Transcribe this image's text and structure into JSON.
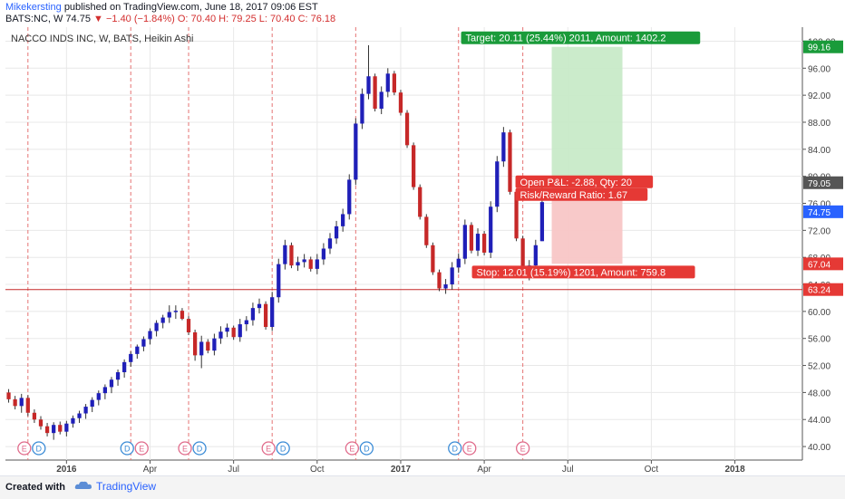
{
  "header": {
    "author": "Mikekersting",
    "published": "published on TradingView.com, June 18, 2017 09:06 EST",
    "symbol": "BATS:NC, W",
    "last": "74.75",
    "change_arrow": "▼",
    "change": "−1.40 (−1.84%)",
    "ohlc": "O: 70.40  H: 79.25  L: 70.40  C: 76.18"
  },
  "footer": {
    "created": "Created with",
    "brand": "TradingView"
  },
  "chart_data": {
    "type": "candlestick",
    "title": "NACCO INDS INC, W, BATS, Heikin Ashi",
    "ylim": [
      38.0,
      101.0
    ],
    "y_ticks": [
      "40.00",
      "44.00",
      "48.00",
      "52.00",
      "56.00",
      "60.00",
      "64.00",
      "68.00",
      "72.00",
      "76.00",
      "80.00",
      "84.00",
      "88.00",
      "92.00",
      "96.00",
      "100.00"
    ],
    "x_labels": [
      {
        "label": "2016",
        "week": 9
      },
      {
        "label": "Apr",
        "week": 22
      },
      {
        "label": "Jul",
        "week": 35
      },
      {
        "label": "Oct",
        "week": 48
      },
      {
        "label": "2017",
        "week": 61
      },
      {
        "label": "Apr",
        "week": 74
      },
      {
        "label": "Jul",
        "week": 87
      },
      {
        "label": "Oct",
        "week": 100
      },
      {
        "label": "2018",
        "week": 113
      }
    ],
    "weeks_total": 124,
    "colors": {
      "up": "#1f1fb8",
      "down": "#c62828",
      "grid": "#e8e8e8",
      "axis": "#555555"
    },
    "candles": [
      [
        48.0,
        48.5,
        46.5,
        47.0
      ],
      [
        47.0,
        47.5,
        45.5,
        46.0
      ],
      [
        46.0,
        47.8,
        45.0,
        47.2
      ],
      [
        47.2,
        47.6,
        44.5,
        45.0
      ],
      [
        45.0,
        45.5,
        43.5,
        44.0
      ],
      [
        44.0,
        44.5,
        42.5,
        43.0
      ],
      [
        43.0,
        43.5,
        41.5,
        42.0
      ],
      [
        42.0,
        43.6,
        41.0,
        43.2
      ],
      [
        43.2,
        43.7,
        41.8,
        42.2
      ],
      [
        42.2,
        43.8,
        41.5,
        43.4
      ],
      [
        43.4,
        44.6,
        42.8,
        44.2
      ],
      [
        44.2,
        45.3,
        43.5,
        44.9
      ],
      [
        44.9,
        46.3,
        44.1,
        45.9
      ],
      [
        45.9,
        47.3,
        45.1,
        46.9
      ],
      [
        46.9,
        48.3,
        46.1,
        47.9
      ],
      [
        47.9,
        49.2,
        47.0,
        48.8
      ],
      [
        48.8,
        50.3,
        47.9,
        49.9
      ],
      [
        49.9,
        51.4,
        49.0,
        51.0
      ],
      [
        51.0,
        52.9,
        50.2,
        52.5
      ],
      [
        52.5,
        54.1,
        51.8,
        53.7
      ],
      [
        53.7,
        55.1,
        53.0,
        54.8
      ],
      [
        54.8,
        56.3,
        54.1,
        55.9
      ],
      [
        55.9,
        57.5,
        55.1,
        57.1
      ],
      [
        57.1,
        58.7,
        56.3,
        58.3
      ],
      [
        58.3,
        59.5,
        57.5,
        59.1
      ],
      [
        59.1,
        60.9,
        58.3,
        59.9
      ],
      [
        59.9,
        60.9,
        58.9,
        60.1
      ],
      [
        60.1,
        60.5,
        58.7,
        58.9
      ],
      [
        58.9,
        59.3,
        56.5,
        56.9
      ],
      [
        56.9,
        57.3,
        52.7,
        53.5
      ],
      [
        53.5,
        56.4,
        51.6,
        55.5
      ],
      [
        55.5,
        55.9,
        53.8,
        54.2
      ],
      [
        54.2,
        56.7,
        53.5,
        56.0
      ],
      [
        56.0,
        57.8,
        55.2,
        57.0
      ],
      [
        57.0,
        58.2,
        56.2,
        57.6
      ],
      [
        57.6,
        57.9,
        55.8,
        56.2
      ],
      [
        56.2,
        58.9,
        55.5,
        58.1
      ],
      [
        58.1,
        59.3,
        57.1,
        58.7
      ],
      [
        58.7,
        61.3,
        57.9,
        60.5
      ],
      [
        60.5,
        61.9,
        59.7,
        61.1
      ],
      [
        61.1,
        61.5,
        57.3,
        57.7
      ],
      [
        57.7,
        62.9,
        57.1,
        62.1
      ],
      [
        62.1,
        67.8,
        61.3,
        67.0
      ],
      [
        67.0,
        70.6,
        66.2,
        69.8
      ],
      [
        69.8,
        70.2,
        66.4,
        66.8
      ],
      [
        66.8,
        68.1,
        66.0,
        67.3
      ],
      [
        67.3,
        68.5,
        66.5,
        67.7
      ],
      [
        67.7,
        68.1,
        65.9,
        66.3
      ],
      [
        66.3,
        68.5,
        65.5,
        67.7
      ],
      [
        67.7,
        70.1,
        66.9,
        69.3
      ],
      [
        69.3,
        71.6,
        68.5,
        70.8
      ],
      [
        70.8,
        73.4,
        70.0,
        72.6
      ],
      [
        72.6,
        75.2,
        71.8,
        74.4
      ],
      [
        74.4,
        80.3,
        73.6,
        79.5
      ],
      [
        79.5,
        88.6,
        78.7,
        87.8
      ],
      [
        87.8,
        93.0,
        87.0,
        92.2
      ],
      [
        92.2,
        99.4,
        91.4,
        94.8
      ],
      [
        94.8,
        95.2,
        89.6,
        90.0
      ],
      [
        90.0,
        93.3,
        89.2,
        92.5
      ],
      [
        92.5,
        96.0,
        91.7,
        95.2
      ],
      [
        95.2,
        95.6,
        92.0,
        92.4
      ],
      [
        92.4,
        92.8,
        89.0,
        89.4
      ],
      [
        89.4,
        89.8,
        84.2,
        84.6
      ],
      [
        84.6,
        85.0,
        78.0,
        78.4
      ],
      [
        78.4,
        78.8,
        73.6,
        74.0
      ],
      [
        74.0,
        74.4,
        69.4,
        69.8
      ],
      [
        69.8,
        70.2,
        65.4,
        65.8
      ],
      [
        65.8,
        66.2,
        63.0,
        63.4
      ],
      [
        63.4,
        64.8,
        62.6,
        64.0
      ],
      [
        64.0,
        67.3,
        63.2,
        66.5
      ],
      [
        66.5,
        68.6,
        65.7,
        67.8
      ],
      [
        67.8,
        73.6,
        67.0,
        72.8
      ],
      [
        72.8,
        73.2,
        68.6,
        69.0
      ],
      [
        69.0,
        72.3,
        68.2,
        71.5
      ],
      [
        71.5,
        71.9,
        68.3,
        68.7
      ],
      [
        68.7,
        76.3,
        67.9,
        75.5
      ],
      [
        75.5,
        83.0,
        74.7,
        82.2
      ],
      [
        82.2,
        87.3,
        81.4,
        86.5
      ],
      [
        86.5,
        86.9,
        77.3,
        77.7
      ],
      [
        77.7,
        78.1,
        70.4,
        70.8
      ],
      [
        70.8,
        71.2,
        65.0,
        65.4
      ],
      [
        65.4,
        67.6,
        64.6,
        66.8
      ],
      [
        66.8,
        70.6,
        66.0,
        69.8
      ],
      [
        70.4,
        79.25,
        70.4,
        76.18
      ]
    ],
    "event_markers": [
      {
        "week": 3,
        "labels": [
          "E",
          "D"
        ]
      },
      {
        "week": 19,
        "labels": [
          "D",
          "E"
        ]
      },
      {
        "week": 28,
        "labels": [
          "E",
          "D"
        ]
      },
      {
        "week": 41,
        "labels": [
          "E",
          "D"
        ]
      },
      {
        "week": 54,
        "labels": [
          "E",
          "D"
        ]
      },
      {
        "week": 70,
        "labels": [
          "D",
          "E"
        ]
      },
      {
        "week": 80,
        "labels": [
          "E"
        ]
      }
    ],
    "hline": {
      "value": 63.24,
      "color": "#c62828"
    },
    "position": {
      "entry": 79.05,
      "target_price": 99.16,
      "stop_price": 67.04,
      "start_week": 85,
      "end_week": 95,
      "target_label": "Target: 20.11 (25.44%) 2011, Amount: 1402.2",
      "stop_label": "Stop: 12.01 (15.19%) 1201, Amount: 759.8",
      "pnl_label": "Open P&L: -2.88, Qty: 20",
      "rr_label": "Risk/Reward Ratio: 1.67"
    },
    "price_tags": [
      {
        "value": 99.16,
        "text": "99.16",
        "color": "#1a9b3a"
      },
      {
        "value": 79.05,
        "text": "79.05",
        "color": "#555555"
      },
      {
        "value": 74.75,
        "text": "74.75",
        "color": "#2962ff"
      },
      {
        "value": 67.04,
        "text": "67.04",
        "color": "#e53935"
      },
      {
        "value": 63.24,
        "text": "63.24",
        "color": "#e53935"
      }
    ]
  }
}
